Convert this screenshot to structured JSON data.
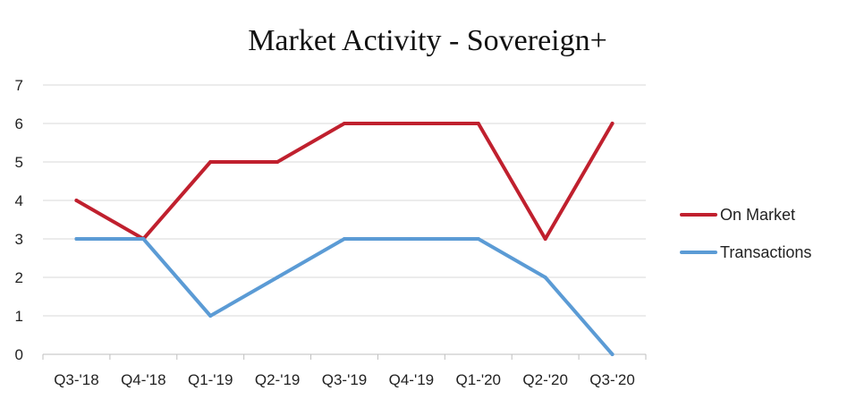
{
  "chart_data": {
    "type": "line",
    "title": "Market Activity - Sovereign+",
    "categories": [
      "Q3-'18",
      "Q4-'18",
      "Q1-'19",
      "Q2-'19",
      "Q3-'19",
      "Q4-'19",
      "Q1-'20",
      "Q2-'20",
      "Q3-'20"
    ],
    "series": [
      {
        "name": "On Market",
        "color": "#c0202e",
        "values": [
          4,
          3,
          5,
          5,
          6,
          6,
          6,
          3,
          6
        ]
      },
      {
        "name": "Transactions",
        "color": "#5b9bd5",
        "values": [
          3,
          3,
          1,
          2,
          3,
          3,
          3,
          2,
          0
        ]
      }
    ],
    "ylim": [
      0,
      7
    ],
    "yticks": [
      "0",
      "1",
      "2",
      "3",
      "4",
      "5",
      "6",
      "7"
    ],
    "grid": true,
    "legend": "right"
  }
}
